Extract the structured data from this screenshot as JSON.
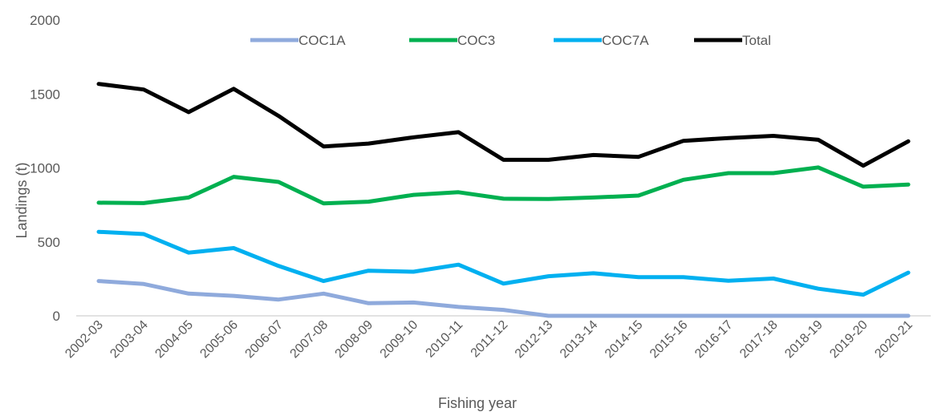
{
  "chart_data": {
    "type": "line",
    "title": "",
    "xlabel": "Fishing year",
    "ylabel": "Landings (t)",
    "ylim": [
      0,
      2000
    ],
    "yticks": [
      0,
      500,
      1000,
      1500,
      2000
    ],
    "grid": false,
    "legend_position": "top",
    "categories": [
      "2002-03",
      "2003-04",
      "2004-05",
      "2005-06",
      "2006-07",
      "2007-08",
      "2008-09",
      "2009-10",
      "2010-11",
      "2011-12",
      "2012-13",
      "2013-14",
      "2014-15",
      "2015-16",
      "2016-17",
      "2017-18",
      "2018-19",
      "2019-20",
      "2020-21"
    ],
    "series": [
      {
        "name": "COC1A",
        "color": "#8faadc",
        "values": [
          235,
          215,
          150,
          135,
          110,
          150,
          85,
          90,
          60,
          40,
          0,
          0,
          0,
          0,
          0,
          0,
          0,
          0,
          0
        ]
      },
      {
        "name": "COC3",
        "color": "#00b050",
        "values": [
          765,
          762,
          800,
          940,
          905,
          760,
          772,
          818,
          836,
          792,
          790,
          800,
          813,
          920,
          965,
          965,
          1003,
          873,
          888
        ]
      },
      {
        "name": "COC7A",
        "color": "#00b0f0",
        "values": [
          568,
          553,
          427,
          458,
          337,
          235,
          305,
          298,
          346,
          218,
          268,
          288,
          261,
          261,
          237,
          252,
          183,
          143,
          292
        ]
      },
      {
        "name": "Total",
        "color": "#000000",
        "values": [
          1568,
          1530,
          1377,
          1535,
          1352,
          1145,
          1165,
          1207,
          1242,
          1055,
          1055,
          1087,
          1075,
          1183,
          1202,
          1217,
          1190,
          1015,
          1180
        ]
      }
    ]
  }
}
